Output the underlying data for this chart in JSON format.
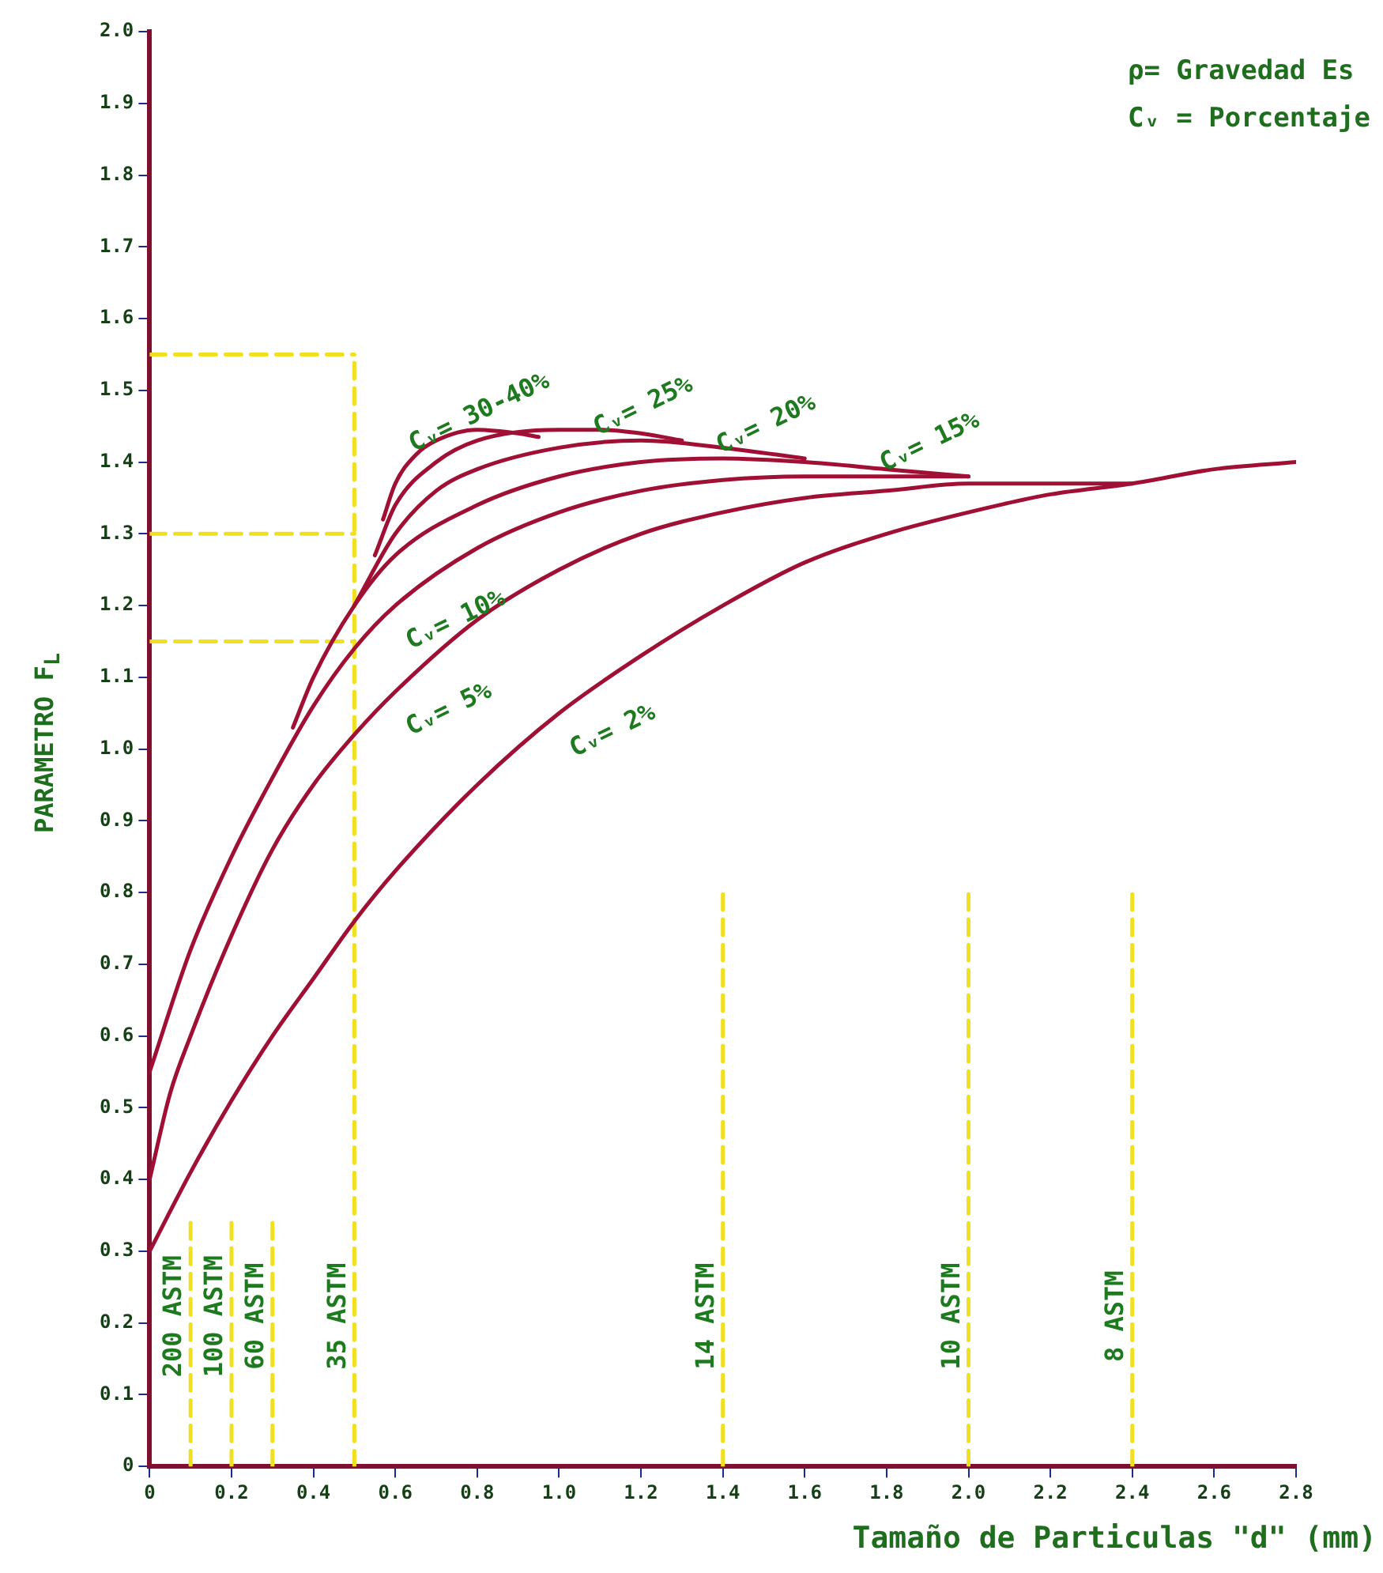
{
  "chart_data": {
    "type": "line",
    "xlabel": "Tamaño de Particulas \"d\" (mm)",
    "ylabel": "PARAMETRO F$_{L}$",
    "xlim": [
      0,
      2.8
    ],
    "xticks": [
      0,
      {
        "value": 0.2,
        "label": "0.2"
      },
      {
        "value": 0.4,
        "label": "0.4"
      },
      {
        "value": 0.6,
        "label": "0.6"
      },
      {
        "value": 0.8,
        "label": "0.8"
      },
      {
        "value": 1,
        "label": "1.0"
      },
      {
        "value": 1.2,
        "label": "1.2"
      },
      {
        "value": 1.4,
        "label": "1.4"
      },
      {
        "value": 1.6,
        "label": "1.6"
      },
      {
        "value": 1.8,
        "label": "1.8"
      },
      {
        "value": 2,
        "label": "2.0"
      },
      {
        "value": 2.2,
        "label": "2.2"
      },
      {
        "value": 2.4,
        "label": "2.4"
      },
      {
        "value": 2.6,
        "label": "2.6"
      },
      {
        "value": 2.8,
        "label": "2.8"
      }
    ],
    "ylim": [
      0,
      2
    ],
    "yticks": [
      0,
      0.1,
      0.2,
      0.3,
      0.4,
      0.5,
      0.6,
      0.7,
      0.8,
      0.9,
      {
        "value": 1,
        "label": "1.0"
      },
      1.1,
      1.2,
      1.3,
      1.4,
      1.5,
      1.6,
      1.7,
      1.8,
      1.9,
      {
        "value": 2,
        "label": "2.0"
      }
    ],
    "grid": false,
    "legend": false,
    "marker": "none",
    "line_style": "solid",
    "series": [
      {
        "name": "Cᵥ= 2%",
        "color": "#a01035",
        "x": [
          0,
          0.1,
          0.2,
          0.3,
          0.4,
          0.5,
          0.6,
          0.8,
          1.0,
          1.2,
          1.4,
          1.6,
          1.8,
          2.0,
          2.2,
          2.4,
          2.6,
          2.8
        ],
        "values": [
          0.3,
          0.41,
          0.51,
          0.6,
          0.68,
          0.76,
          0.83,
          0.95,
          1.05,
          1.13,
          1.2,
          1.26,
          1.3,
          1.33,
          1.355,
          1.37,
          1.39,
          1.4
        ]
      },
      {
        "name": "Cᵥ= 5%",
        "color": "#a01035",
        "x": [
          0,
          0.05,
          0.1,
          0.2,
          0.3,
          0.4,
          0.5,
          0.6,
          0.8,
          1.0,
          1.2,
          1.4,
          1.6,
          1.8,
          2.0,
          2.2,
          2.4
        ],
        "values": [
          0.4,
          0.52,
          0.6,
          0.74,
          0.86,
          0.95,
          1.02,
          1.08,
          1.18,
          1.25,
          1.3,
          1.33,
          1.35,
          1.36,
          1.37,
          1.37,
          1.37
        ]
      },
      {
        "name": "Cᵥ= 10%",
        "color": "#a01035",
        "x": [
          0,
          0.1,
          0.2,
          0.3,
          0.4,
          0.5,
          0.6,
          0.8,
          1.0,
          1.2,
          1.4,
          1.6,
          1.8,
          2.0
        ],
        "values": [
          0.55,
          0.72,
          0.85,
          0.96,
          1.06,
          1.14,
          1.2,
          1.28,
          1.33,
          1.36,
          1.375,
          1.38,
          1.38,
          1.38
        ]
      },
      {
        "name": "Cᵥ= 15%",
        "color": "#a01035",
        "x": [
          0.35,
          0.4,
          0.5,
          0.6,
          0.8,
          1.0,
          1.2,
          1.4,
          1.6,
          1.8,
          2.0
        ],
        "values": [
          1.03,
          1.1,
          1.2,
          1.27,
          1.34,
          1.38,
          1.4,
          1.405,
          1.4,
          1.39,
          1.38
        ]
      },
      {
        "name": "Cᵥ= 20%",
        "color": "#a01035",
        "x": [
          0.5,
          0.6,
          0.7,
          0.8,
          1.0,
          1.2,
          1.4,
          1.6
        ],
        "values": [
          1.2,
          1.3,
          1.36,
          1.39,
          1.42,
          1.43,
          1.42,
          1.405
        ]
      },
      {
        "name": "Cᵥ= 25%",
        "color": "#a01035",
        "x": [
          0.55,
          0.6,
          0.7,
          0.8,
          1.0,
          1.1,
          1.2,
          1.3
        ],
        "values": [
          1.27,
          1.34,
          1.4,
          1.43,
          1.445,
          1.445,
          1.44,
          1.43
        ]
      },
      {
        "name": "Cᵥ= 30-40%",
        "color": "#a01035",
        "x": [
          0.57,
          0.6,
          0.65,
          0.7,
          0.8,
          0.9,
          0.95
        ],
        "values": [
          1.32,
          1.37,
          1.41,
          1.43,
          1.445,
          1.44,
          1.435
        ]
      },
      {
        "color": "#f0e020",
        "line_style": "dashed",
        "x": [
          0,
          0.5
        ],
        "values": [
          1.55,
          1.55
        ]
      },
      {
        "color": "#f0e020",
        "line_style": "dashed",
        "x": [
          0,
          0.5
        ],
        "values": [
          1.3,
          1.3
        ]
      },
      {
        "color": "#f0e020",
        "line_style": "dashed",
        "x": [
          0,
          0.5
        ],
        "values": [
          1.15,
          1.15
        ]
      },
      {
        "name": "200 ASTM",
        "color": "#f0e020",
        "line_style": "dashed",
        "x": [
          0.1,
          0.1
        ],
        "values": [
          0,
          0.35
        ]
      },
      {
        "name": "100 ASTM",
        "color": "#f0e020",
        "line_style": "dashed",
        "x": [
          0.2,
          0.2
        ],
        "values": [
          0,
          0.35
        ]
      },
      {
        "name": "60 ASTM",
        "color": "#f0e020",
        "line_style": "dashed",
        "x": [
          0.3,
          0.3
        ],
        "values": [
          0,
          0.35
        ]
      },
      {
        "name": "35 ASTM",
        "color": "#f0e020",
        "line_style": "dashed",
        "x": [
          0.5,
          0.5
        ],
        "values": [
          0,
          1.55
        ]
      },
      {
        "name": "14 ASTM",
        "color": "#f0e020",
        "line_style": "dashed",
        "x": [
          1.4,
          1.4
        ],
        "values": [
          0,
          0.8
        ]
      },
      {
        "name": "10 ASTM",
        "color": "#f0e020",
        "line_style": "dashed",
        "x": [
          2.0,
          2.0
        ],
        "values": [
          0,
          0.8
        ]
      },
      {
        "name": "8 ASTM",
        "color": "#f0e020",
        "line_style": "dashed",
        "x": [
          2.4,
          2.4
        ],
        "values": [
          0,
          0.8
        ]
      }
    ],
    "annotations": [
      "ρ= Gravedad Es",
      "Cᵥ = Porcentaje"
    ]
  }
}
